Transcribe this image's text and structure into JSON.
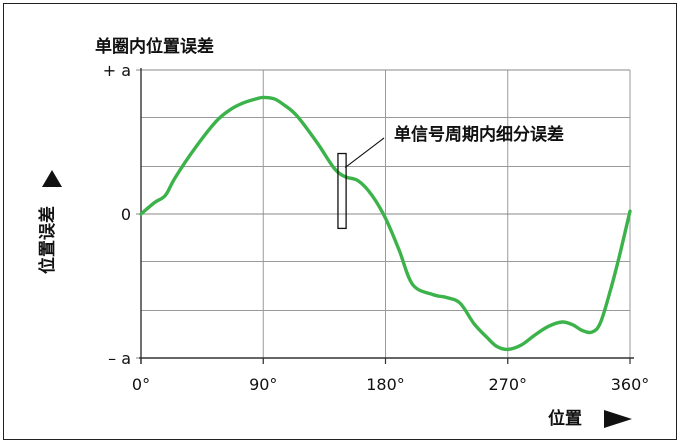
{
  "chart_data": {
    "type": "line",
    "title": "单圈内位置误差",
    "xlabel": "位置",
    "ylabel": "位置误差",
    "xlim": [
      0,
      360
    ],
    "ylim": [
      -1,
      1
    ],
    "x_ticks": [
      0,
      90,
      180,
      270,
      360
    ],
    "x_tick_labels": [
      "0°",
      "90°",
      "180°",
      "270°",
      "360°"
    ],
    "y_ticks": [
      1,
      0,
      -1
    ],
    "y_tick_labels": [
      "+ a",
      "0",
      "– a"
    ],
    "grid": true,
    "annotation": {
      "text": "单信号周期内细分误差",
      "x_range": [
        145,
        151
      ],
      "y_range": [
        -0.1,
        0.42
      ]
    },
    "series": [
      {
        "color": "#3cb34a",
        "x": [
          0,
          10,
          18,
          25,
          40,
          55,
          65,
          75,
          85,
          90,
          98,
          105,
          115,
          130,
          142,
          150,
          160,
          170,
          180,
          190,
          200,
          215,
          225,
          235,
          245,
          255,
          262,
          270,
          280,
          290,
          300,
          310,
          318,
          325,
          332,
          338,
          345,
          352,
          360
        ],
        "values": [
          0.0,
          0.08,
          0.13,
          0.25,
          0.46,
          0.64,
          0.72,
          0.77,
          0.8,
          0.81,
          0.8,
          0.76,
          0.68,
          0.49,
          0.32,
          0.26,
          0.23,
          0.13,
          -0.03,
          -0.25,
          -0.49,
          -0.56,
          -0.58,
          -0.62,
          -0.76,
          -0.86,
          -0.92,
          -0.94,
          -0.91,
          -0.84,
          -0.78,
          -0.75,
          -0.77,
          -0.81,
          -0.82,
          -0.76,
          -0.55,
          -0.3,
          0.02
        ]
      }
    ]
  }
}
